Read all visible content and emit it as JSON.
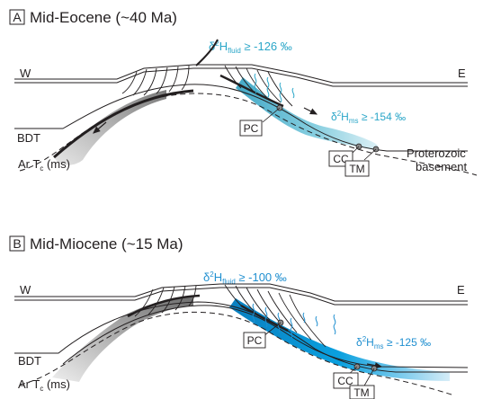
{
  "panels": [
    {
      "letter": "A",
      "title": "Mid-Eocene (~40 Ma)",
      "west": "W",
      "east": "E",
      "bdt": "BDT",
      "ar_prefix": "Ar T",
      "ar_sub": "c",
      "ar_suffix": " (ms)",
      "pc": "PC",
      "cc": "CC",
      "tm": "TM",
      "basement_line1": "Proterozoic",
      "basement_line2": "basement",
      "fluid_prefix": "δ",
      "fluid_sup": "2",
      "fluid_h": "H",
      "fluid_sub": "fluid",
      "fluid_value": " ≥ -126 ‰",
      "ms_prefix": "δ",
      "ms_sup": "2",
      "ms_h": "H",
      "ms_sub": "ms",
      "ms_value": " ≥ -154 ‰"
    },
    {
      "letter": "B",
      "title": "Mid-Miocene (~15 Ma)",
      "west": "W",
      "east": "E",
      "bdt": "BDT",
      "ar_prefix": "Ar T",
      "ar_sub": "c",
      "ar_suffix": " (ms)",
      "pc": "PC",
      "cc": "CC",
      "tm": "TM",
      "fluid_prefix": "δ",
      "fluid_sup": "2",
      "fluid_h": "H",
      "fluid_sub": "fluid",
      "fluid_value": " ≥ -100 ‰",
      "ms_prefix": "δ",
      "ms_sup": "2",
      "ms_h": "H",
      "ms_sub": "ms",
      "ms_value": " ≥ -125 ‰"
    }
  ],
  "colors": {
    "ink": "#231f20",
    "fluid_label": "#2aa6c8",
    "fluid_zone_eocene": "#5cc0d8",
    "fluid_zone_miocene": "#0096d6",
    "shear_zone_gray": "#8a8a8a"
  }
}
